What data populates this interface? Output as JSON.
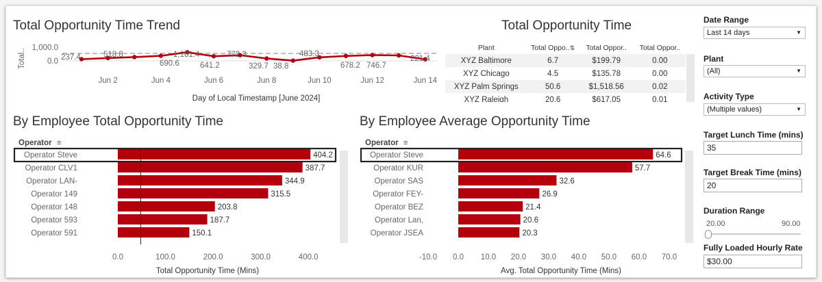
{
  "trend": {
    "title": "Total Opportunity Time Trend",
    "y_axis_label": "Total..",
    "y_ticks": [
      "1,000.0",
      "0.0"
    ],
    "x_ticks": [
      "Jun 2",
      "Jun 4",
      "Jun 6",
      "Jun 8",
      "Jun 10",
      "Jun 12",
      "Jun 14"
    ],
    "x_axis_title": "Day of Local Timestamp [June 2024]",
    "point_labels": [
      "237.4",
      "518.8",
      "690.6",
      "1,181.4",
      "641.2",
      "772.3",
      "329.7",
      "38.8",
      "483.3",
      "678.2",
      "746.7",
      "221.4"
    ]
  },
  "chart_data": [
    {
      "type": "line",
      "title": "Total Opportunity Time Trend",
      "xlabel": "Day of Local Timestamp [June 2024]",
      "ylabel": "Total..",
      "x": [
        "Jun 1",
        "Jun 2",
        "Jun 3",
        "Jun 4",
        "Jun 5",
        "Jun 6",
        "Jun 7",
        "Jun 8",
        "Jun 9",
        "Jun 10",
        "Jun 11",
        "Jun 12",
        "Jun 13",
        "Jun 14"
      ],
      "series": [
        {
          "name": "Total Opportunity Time",
          "values": [
            237.4,
            390,
            518.8,
            690.6,
            1181.4,
            641.2,
            772.3,
            329.7,
            38.8,
            483.3,
            678.2,
            800,
            746.7,
            221.4
          ]
        }
      ],
      "reference_line": 500,
      "ylim": [
        0,
        1300
      ]
    },
    {
      "type": "bar",
      "title": "By Employee Total Opportunity Time",
      "categories": [
        "Operator Steve",
        "Operator CLV1",
        "Operator LAN-",
        "Operator 149",
        "Operator 148",
        "Operator 593",
        "Operator 591"
      ],
      "values": [
        404.2,
        387.7,
        344.9,
        315.5,
        203.8,
        187.7,
        150.1
      ],
      "xlabel": "Total Opportunity Time (Mins)",
      "ylabel": "Operator",
      "xlim": [
        0,
        420
      ],
      "x_ticks": [
        0,
        100,
        200,
        300,
        400
      ],
      "reference_line": 48
    },
    {
      "type": "bar",
      "title": "By Employee Average Opportunity Time",
      "categories": [
        "Operator Steve",
        "Operator KUR",
        "Operator SAS",
        "Operator FEY-",
        "Operator BEZ",
        "Operator Lan,",
        "Operator JSEA"
      ],
      "values": [
        64.6,
        57.7,
        32.6,
        26.9,
        21.4,
        20.6,
        20.3
      ],
      "xlabel": "Avg. Total Opportunity Time (Mins)",
      "ylabel": "Operator",
      "xlim": [
        -10,
        72
      ],
      "x_ticks": [
        -10,
        0,
        10,
        20,
        30,
        40,
        50,
        60,
        70
      ]
    }
  ],
  "total_table": {
    "title": "Total Opportunity Time",
    "headers": [
      "Plant",
      "Total Oppo..",
      "Total Oppor..",
      "Total Oppor.."
    ],
    "rows": [
      [
        "XYZ Baltimore",
        "6.7",
        "$199.79",
        "0.00"
      ],
      [
        "XYZ Chicago",
        "4.5",
        "$135.78",
        "0.00"
      ],
      [
        "XYZ Palm Springs",
        "50.6",
        "$1,518.56",
        "0.02"
      ],
      [
        "XYZ Raleigh",
        "20.6",
        "$617.05",
        "0.01"
      ]
    ]
  },
  "emp_total": {
    "title": "By Employee Total Opportunity Time",
    "header": "Operator",
    "x_tick_labels": [
      "0.0",
      "100.0",
      "200.0",
      "300.0",
      "400.0"
    ],
    "x_axis_title": "Total Opportunity Time (Mins)",
    "value_labels": [
      "404.2",
      "387.7",
      "344.9",
      "315.5",
      "203.8",
      "187.7",
      "150.1"
    ]
  },
  "emp_avg": {
    "title": "By Employee Average Opportunity Time",
    "header": "Operator",
    "x_tick_labels": [
      "-10.0",
      "0.0",
      "10.0",
      "20.0",
      "30.0",
      "40.0",
      "50.0",
      "60.0",
      "70.0"
    ],
    "x_axis_title": "Avg. Total Opportunity Time (Mins)",
    "value_labels": [
      "64.6",
      "57.7",
      "32.6",
      "26.9",
      "21.4",
      "20.6",
      "20.3"
    ]
  },
  "filters": {
    "date_range": {
      "label": "Date Range",
      "value": "Last 14 days"
    },
    "plant": {
      "label": "Plant",
      "value": "(All)"
    },
    "activity_type": {
      "label": "Activity Type",
      "value": "(Multiple values)"
    },
    "target_lunch": {
      "label": "Target Lunch Time (mins)",
      "value": "35"
    },
    "target_break": {
      "label": "Target Break Time (mins)",
      "value": "20"
    },
    "duration_range": {
      "label": "Duration Range",
      "min": "20.00",
      "max": "90.00"
    },
    "hourly_rate": {
      "label": "Fully Loaded Hourly Rate",
      "value": "$30.00"
    }
  },
  "colors": {
    "bar": "#b3000c",
    "line": "#b3000c",
    "reference": "#999999"
  }
}
